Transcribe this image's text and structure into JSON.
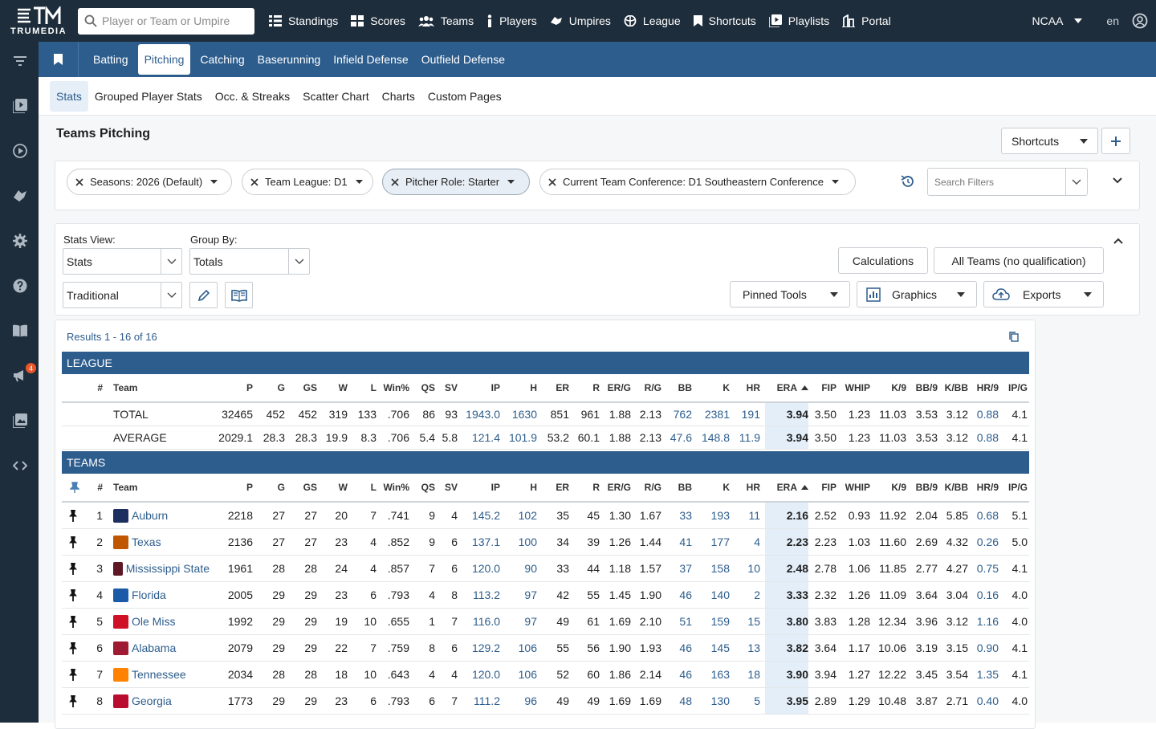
{
  "brand": "TRUMEDIA",
  "search": {
    "placeholder": "Player or Team or Umpire"
  },
  "nav": [
    {
      "label": "Standings",
      "icon": "standings-icon"
    },
    {
      "label": "Scores",
      "icon": "scores-icon"
    },
    {
      "label": "Teams",
      "icon": "teams-icon"
    },
    {
      "label": "Players",
      "icon": "players-icon"
    },
    {
      "label": "Umpires",
      "icon": "umpires-icon"
    },
    {
      "label": "League",
      "icon": "league-icon"
    },
    {
      "label": "Shortcuts",
      "icon": "bookmark-icon"
    },
    {
      "label": "Playlists",
      "icon": "playlists-icon"
    },
    {
      "label": "Portal",
      "icon": "portal-icon"
    }
  ],
  "org": "NCAA",
  "lang": "en",
  "sidebar_badge": "4",
  "main_tabs": [
    "Batting",
    "Pitching",
    "Catching",
    "Baserunning",
    "Infield Defense",
    "Outfield Defense"
  ],
  "sub_tabs": [
    "Stats",
    "Grouped Player Stats",
    "Occ. & Streaks",
    "Scatter Chart",
    "Charts",
    "Custom Pages"
  ],
  "page_title": "Teams Pitching",
  "shortcuts_label": "Shortcuts",
  "filters": [
    {
      "label": "Seasons: 2026 (Default)"
    },
    {
      "label": "Team League: D1"
    },
    {
      "label": "Pitcher Role: Starter"
    },
    {
      "label": "Current Team Conference: D1 Southeastern Conference"
    }
  ],
  "filter_search": {
    "placeholder": "Search Filters"
  },
  "stats_view": {
    "label": "Stats View:",
    "value": "Stats"
  },
  "group_by": {
    "label": "Group By:",
    "value": "Totals"
  },
  "stat_set": {
    "value": "Traditional"
  },
  "buttons": {
    "calculations": "Calculations",
    "all_teams": "All Teams (no qualification)",
    "pinned": "Pinned Tools",
    "graphics": "Graphics",
    "exports": "Exports"
  },
  "results": "Results 1 - 16 of 16",
  "league_title": "LEAGUE",
  "teams_title": "TEAMS",
  "columns": [
    "#",
    "Team",
    "P",
    "G",
    "GS",
    "W",
    "L",
    "Win%",
    "QS",
    "SV",
    "IP",
    "H",
    "ER",
    "R",
    "ER/G",
    "R/G",
    "BB",
    "K",
    "HR",
    "ERA",
    "FIP",
    "WHIP",
    "K/9",
    "BB/9",
    "K/BB",
    "HR/9",
    "IP/G"
  ],
  "league_rows": [
    [
      "",
      "TOTAL",
      "32465",
      "452",
      "452",
      "319",
      "133",
      ".706",
      "86",
      "93",
      "1943.0",
      "1630",
      "851",
      "961",
      "1.88",
      "2.13",
      "762",
      "2381",
      "191",
      "3.94",
      "3.50",
      "1.23",
      "11.03",
      "3.53",
      "3.12",
      "0.88",
      "4.1"
    ],
    [
      "",
      "AVERAGE",
      "2029.1",
      "28.3",
      "28.3",
      "19.9",
      "8.3",
      ".706",
      "5.4",
      "5.8",
      "121.4",
      "101.9",
      "53.2",
      "60.1",
      "1.88",
      "2.13",
      "47.6",
      "148.8",
      "11.9",
      "3.94",
      "3.50",
      "1.23",
      "11.03",
      "3.53",
      "3.12",
      "0.88",
      "4.1"
    ]
  ],
  "team_rows": [
    [
      "1",
      "Auburn",
      "2218",
      "27",
      "27",
      "20",
      "7",
      ".741",
      "9",
      "4",
      "145.2",
      "102",
      "35",
      "45",
      "1.30",
      "1.67",
      "33",
      "193",
      "11",
      "2.16",
      "2.52",
      "0.93",
      "11.92",
      "2.04",
      "5.85",
      "0.68",
      "5.1"
    ],
    [
      "2",
      "Texas",
      "2136",
      "27",
      "27",
      "23",
      "4",
      ".852",
      "9",
      "6",
      "137.1",
      "100",
      "34",
      "39",
      "1.26",
      "1.44",
      "41",
      "177",
      "4",
      "2.23",
      "2.23",
      "1.03",
      "11.60",
      "2.69",
      "4.32",
      "0.26",
      "5.0"
    ],
    [
      "3",
      "Mississippi State",
      "1961",
      "28",
      "28",
      "24",
      "4",
      ".857",
      "7",
      "6",
      "120.0",
      "90",
      "33",
      "44",
      "1.18",
      "1.57",
      "37",
      "158",
      "10",
      "2.48",
      "2.78",
      "1.06",
      "11.85",
      "2.77",
      "4.27",
      "0.75",
      "4.1"
    ],
    [
      "4",
      "Florida",
      "2005",
      "29",
      "29",
      "23",
      "6",
      ".793",
      "4",
      "8",
      "113.2",
      "97",
      "42",
      "55",
      "1.45",
      "1.90",
      "46",
      "140",
      "2",
      "3.33",
      "2.32",
      "1.26",
      "11.09",
      "3.64",
      "3.04",
      "0.16",
      "4.0"
    ],
    [
      "5",
      "Ole Miss",
      "1992",
      "29",
      "29",
      "19",
      "10",
      ".655",
      "1",
      "7",
      "116.0",
      "97",
      "49",
      "61",
      "1.69",
      "2.10",
      "51",
      "159",
      "15",
      "3.80",
      "3.83",
      "1.28",
      "12.34",
      "3.96",
      "3.12",
      "1.16",
      "4.0"
    ],
    [
      "6",
      "Alabama",
      "2079",
      "29",
      "29",
      "22",
      "7",
      ".759",
      "8",
      "6",
      "129.2",
      "106",
      "55",
      "56",
      "1.90",
      "1.93",
      "46",
      "145",
      "13",
      "3.82",
      "3.64",
      "1.17",
      "10.06",
      "3.19",
      "3.15",
      "0.90",
      "4.1"
    ],
    [
      "7",
      "Tennessee",
      "2034",
      "28",
      "28",
      "18",
      "10",
      ".643",
      "4",
      "4",
      "120.0",
      "106",
      "52",
      "60",
      "1.86",
      "2.14",
      "46",
      "163",
      "18",
      "3.90",
      "3.94",
      "1.27",
      "12.22",
      "3.45",
      "3.54",
      "1.35",
      "4.1"
    ],
    [
      "8",
      "Georgia",
      "1773",
      "29",
      "29",
      "23",
      "6",
      ".793",
      "6",
      "7",
      "111.2",
      "96",
      "49",
      "49",
      "1.69",
      "1.69",
      "48",
      "130",
      "5",
      "3.95",
      "2.89",
      "1.29",
      "10.48",
      "3.87",
      "2.71",
      "0.40",
      "4.0"
    ]
  ],
  "team_colors": [
    "#1d2f5e",
    "#bf5700",
    "#5d1725",
    "#1a5aa8",
    "#ce1126",
    "#9e1b32",
    "#ff8200",
    "#ba0c2f"
  ]
}
